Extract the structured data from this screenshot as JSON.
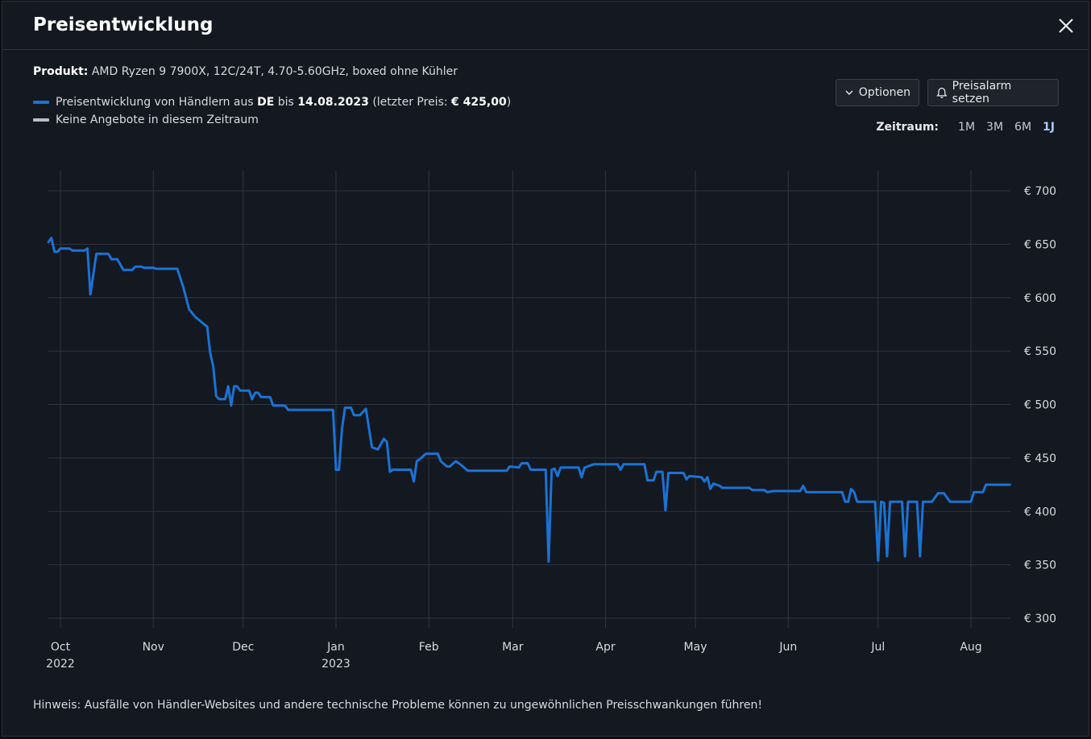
{
  "header": {
    "title": "Preisentwicklung"
  },
  "product": {
    "label": "Produkt:",
    "name": "AMD Ryzen 9 7900X, 12C/24T, 4.70-5.60GHz, boxed ohne Kühler"
  },
  "legend": {
    "series_prefix": "Preisentwicklung von Händlern aus",
    "country": "DE",
    "until": "bis",
    "date": "14.08.2023",
    "last_price_open": "(letzter Preis:",
    "last_price": "€ 425,00",
    "last_price_close": ")",
    "no_offers": "Keine Angebote in diesem Zeitraum",
    "series_color": "#1a73d4",
    "no_offers_color": "#b9bec6"
  },
  "toolbar": {
    "options_label": "Optionen",
    "alarm_label": "Preisalarm setzen"
  },
  "range": {
    "label": "Zeitraum:",
    "options": [
      "1M",
      "3M",
      "6M",
      "1J"
    ],
    "active": "1J"
  },
  "note": "Hinweis: Ausfälle von Händler-Websites und andere technische Probleme können zu ungewöhnlichen Preisschwankungen führen!",
  "chart_data": {
    "type": "line",
    "x_axis": "date",
    "ylim": [
      300,
      700
    ],
    "y_ticks": [
      300,
      350,
      400,
      450,
      500,
      550,
      600,
      650,
      700
    ],
    "y_tick_labels": [
      "€ 300",
      "€ 350",
      "€ 400",
      "€ 450",
      "€ 500",
      "€ 550",
      "€ 600",
      "€ 650",
      "€ 700"
    ],
    "xlim": [
      "2022-09-27",
      "2023-08-14"
    ],
    "x_ticks": [
      {
        "date": "2022-10-01",
        "label": "Oct",
        "year": "2022"
      },
      {
        "date": "2022-11-01",
        "label": "Nov",
        "year": ""
      },
      {
        "date": "2022-12-01",
        "label": "Dec",
        "year": ""
      },
      {
        "date": "2023-01-01",
        "label": "Jan",
        "year": "2023"
      },
      {
        "date": "2023-02-01",
        "label": "Feb",
        "year": ""
      },
      {
        "date": "2023-03-01",
        "label": "Mar",
        "year": ""
      },
      {
        "date": "2023-04-01",
        "label": "Apr",
        "year": ""
      },
      {
        "date": "2023-05-01",
        "label": "May",
        "year": ""
      },
      {
        "date": "2023-06-01",
        "label": "Jun",
        "year": ""
      },
      {
        "date": "2023-07-01",
        "label": "Jul",
        "year": ""
      },
      {
        "date": "2023-08-01",
        "label": "Aug",
        "year": ""
      }
    ],
    "grid": true,
    "series": [
      {
        "color": "#1a73d4",
        "points": [
          [
            "2022-09-27",
            652
          ],
          [
            "2022-09-28",
            656
          ],
          [
            "2022-09-29",
            643
          ],
          [
            "2022-09-30",
            643
          ],
          [
            "2022-10-01",
            646
          ],
          [
            "2022-10-04",
            646
          ],
          [
            "2022-10-05",
            644
          ],
          [
            "2022-10-09",
            644
          ],
          [
            "2022-10-10",
            646
          ],
          [
            "2022-10-11",
            603
          ],
          [
            "2022-10-13",
            641
          ],
          [
            "2022-10-17",
            641
          ],
          [
            "2022-10-18",
            636
          ],
          [
            "2022-10-20",
            636
          ],
          [
            "2022-10-22",
            626
          ],
          [
            "2022-10-25",
            626
          ],
          [
            "2022-10-26",
            629
          ],
          [
            "2022-10-28",
            629
          ],
          [
            "2022-10-29",
            628
          ],
          [
            "2022-11-01",
            628
          ],
          [
            "2022-11-02",
            627
          ],
          [
            "2022-11-09",
            627
          ],
          [
            "2022-11-11",
            610
          ],
          [
            "2022-11-13",
            589
          ],
          [
            "2022-11-15",
            582
          ],
          [
            "2022-11-18",
            575
          ],
          [
            "2022-11-19",
            573
          ],
          [
            "2022-11-20",
            548
          ],
          [
            "2022-11-21",
            536
          ],
          [
            "2022-11-22",
            508
          ],
          [
            "2022-11-23",
            505
          ],
          [
            "2022-11-25",
            505
          ],
          [
            "2022-11-26",
            517
          ],
          [
            "2022-11-27",
            499
          ],
          [
            "2022-11-28",
            517
          ],
          [
            "2022-11-29",
            517
          ],
          [
            "2022-11-30",
            513
          ],
          [
            "2022-12-01",
            513
          ],
          [
            "2022-12-03",
            513
          ],
          [
            "2022-12-04",
            505
          ],
          [
            "2022-12-05",
            511
          ],
          [
            "2022-12-06",
            511
          ],
          [
            "2022-12-07",
            507
          ],
          [
            "2022-12-10",
            507
          ],
          [
            "2022-12-11",
            499
          ],
          [
            "2022-12-15",
            499
          ],
          [
            "2022-12-16",
            495
          ],
          [
            "2022-12-31",
            495
          ],
          [
            "2023-01-01",
            439
          ],
          [
            "2023-01-02",
            439
          ],
          [
            "2023-01-03",
            477
          ],
          [
            "2023-01-04",
            497
          ],
          [
            "2023-01-06",
            497
          ],
          [
            "2023-01-07",
            490
          ],
          [
            "2023-01-09",
            490
          ],
          [
            "2023-01-11",
            496
          ],
          [
            "2023-01-13",
            460
          ],
          [
            "2023-01-15",
            458
          ],
          [
            "2023-01-17",
            468
          ],
          [
            "2023-01-18",
            465
          ],
          [
            "2023-01-19",
            437
          ],
          [
            "2023-01-20",
            439
          ],
          [
            "2023-01-26",
            439
          ],
          [
            "2023-01-27",
            428
          ],
          [
            "2023-01-28",
            447
          ],
          [
            "2023-01-29",
            449
          ],
          [
            "2023-01-31",
            454
          ],
          [
            "2023-02-04",
            454
          ],
          [
            "2023-02-05",
            447
          ],
          [
            "2023-02-07",
            442
          ],
          [
            "2023-02-08",
            442
          ],
          [
            "2023-02-10",
            447
          ],
          [
            "2023-02-12",
            443
          ],
          [
            "2023-02-14",
            438
          ],
          [
            "2023-02-27",
            438
          ],
          [
            "2023-02-28",
            442
          ],
          [
            "2023-03-03",
            441
          ],
          [
            "2023-03-04",
            445
          ],
          [
            "2023-03-06",
            445
          ],
          [
            "2023-03-07",
            439
          ],
          [
            "2023-03-12",
            439
          ],
          [
            "2023-03-13",
            353
          ],
          [
            "2023-03-14",
            439
          ],
          [
            "2023-03-15",
            440
          ],
          [
            "2023-03-16",
            433
          ],
          [
            "2023-03-17",
            441
          ],
          [
            "2023-03-23",
            441
          ],
          [
            "2023-03-24",
            432
          ],
          [
            "2023-03-25",
            441
          ],
          [
            "2023-03-28",
            444
          ],
          [
            "2023-04-05",
            444
          ],
          [
            "2023-04-06",
            439
          ],
          [
            "2023-04-07",
            444
          ],
          [
            "2023-04-14",
            444
          ],
          [
            "2023-04-15",
            429
          ],
          [
            "2023-04-17",
            429
          ],
          [
            "2023-04-18",
            437
          ],
          [
            "2023-04-20",
            437
          ],
          [
            "2023-04-21",
            401
          ],
          [
            "2023-04-22",
            436
          ],
          [
            "2023-04-27",
            436
          ],
          [
            "2023-04-28",
            430
          ],
          [
            "2023-04-29",
            433
          ],
          [
            "2023-05-03",
            432
          ],
          [
            "2023-05-04",
            428
          ],
          [
            "2023-05-05",
            432
          ],
          [
            "2023-05-06",
            421
          ],
          [
            "2023-05-07",
            426
          ],
          [
            "2023-05-09",
            424
          ],
          [
            "2023-05-10",
            422
          ],
          [
            "2023-05-19",
            422
          ],
          [
            "2023-05-20",
            420
          ],
          [
            "2023-05-24",
            420
          ],
          [
            "2023-05-25",
            418
          ],
          [
            "2023-05-27",
            419
          ],
          [
            "2023-06-05",
            419
          ],
          [
            "2023-06-06",
            424
          ],
          [
            "2023-06-07",
            418
          ],
          [
            "2023-06-19",
            418
          ],
          [
            "2023-06-20",
            409
          ],
          [
            "2023-06-21",
            409
          ],
          [
            "2023-06-22",
            421
          ],
          [
            "2023-06-23",
            418
          ],
          [
            "2023-06-24",
            409
          ],
          [
            "2023-06-30",
            409
          ],
          [
            "2023-07-01",
            354
          ],
          [
            "2023-07-02",
            409
          ],
          [
            "2023-07-03",
            408
          ],
          [
            "2023-07-04",
            358
          ],
          [
            "2023-07-05",
            409
          ],
          [
            "2023-07-09",
            409
          ],
          [
            "2023-07-10",
            358
          ],
          [
            "2023-07-11",
            409
          ],
          [
            "2023-07-14",
            409
          ],
          [
            "2023-07-15",
            358
          ],
          [
            "2023-07-16",
            409
          ],
          [
            "2023-07-19",
            409
          ],
          [
            "2023-07-21",
            417
          ],
          [
            "2023-07-23",
            417
          ],
          [
            "2023-07-25",
            409
          ],
          [
            "2023-08-01",
            409
          ],
          [
            "2023-08-02",
            418
          ],
          [
            "2023-08-05",
            418
          ],
          [
            "2023-08-06",
            425
          ],
          [
            "2023-08-14",
            425
          ]
        ]
      }
    ]
  }
}
